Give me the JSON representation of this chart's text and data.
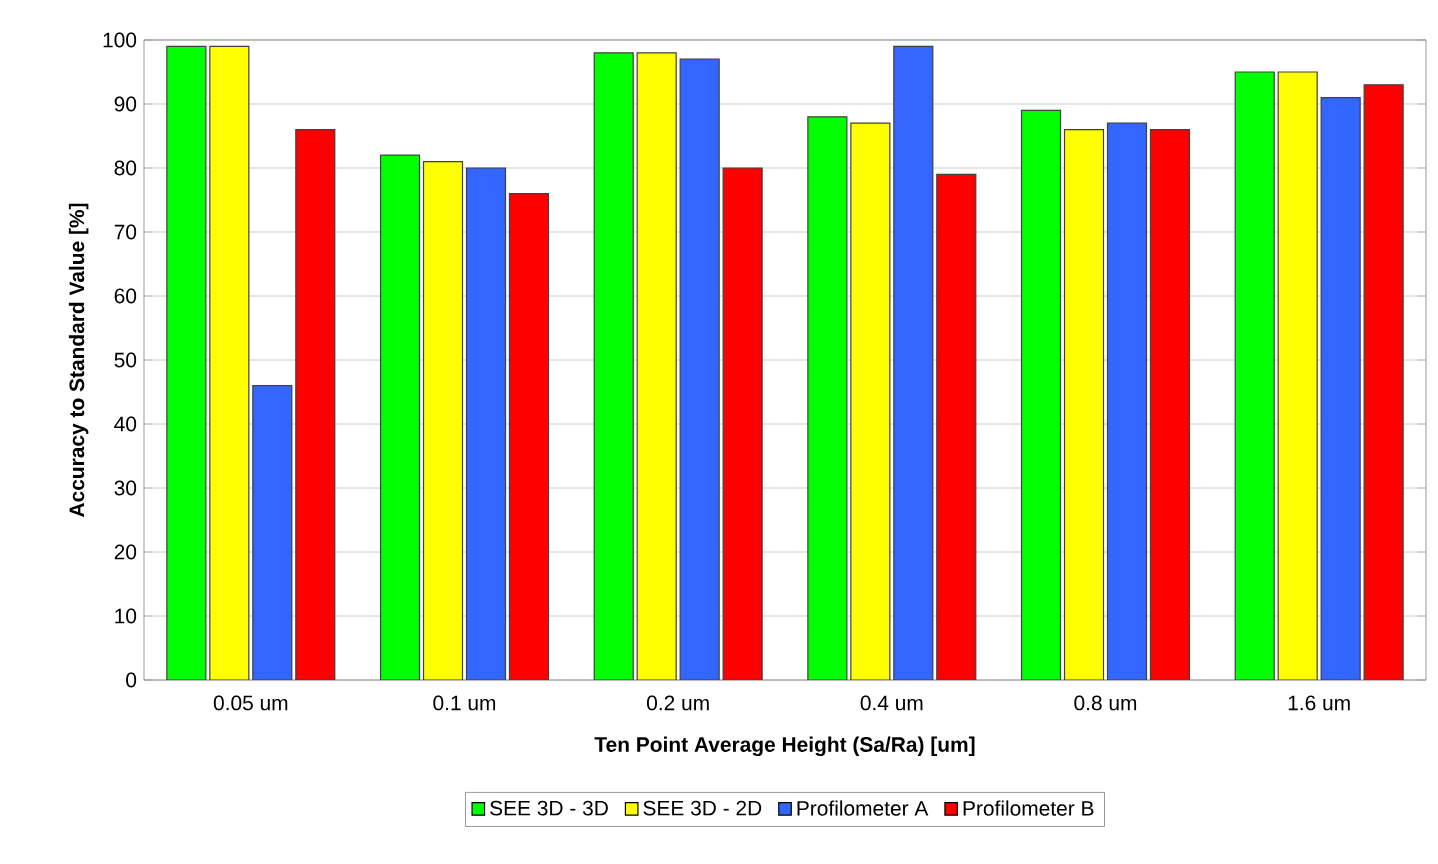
{
  "chart_data": {
    "type": "bar",
    "xlabel": "Ten Point Average Height (Sa/Ra) [um]",
    "ylabel": "Accuracy to Standard Value [%]",
    "categories": [
      "0.05 um",
      "0.1 um",
      "0.2 um",
      "0.4 um",
      "0.8 um",
      "1.6 um"
    ],
    "series": [
      {
        "name": "SEE 3D - 3D",
        "color": "#00ff00",
        "values": [
          99,
          82,
          98,
          88,
          89,
          95
        ]
      },
      {
        "name": "SEE 3D - 2D",
        "color": "#ffff00",
        "values": [
          99,
          81,
          98,
          87,
          86,
          95
        ]
      },
      {
        "name": "Profilometer A",
        "color": "#3366ff",
        "values": [
          46,
          80,
          97,
          99,
          87,
          91
        ]
      },
      {
        "name": "Profilometer B",
        "color": "#ff0000",
        "values": [
          86,
          76,
          80,
          79,
          86,
          93
        ]
      }
    ],
    "ylim": [
      0,
      100
    ],
    "yticks": [
      0,
      10,
      20,
      30,
      40,
      50,
      60,
      70,
      80,
      90,
      100
    ],
    "grid": "y",
    "legend": "bottom"
  }
}
